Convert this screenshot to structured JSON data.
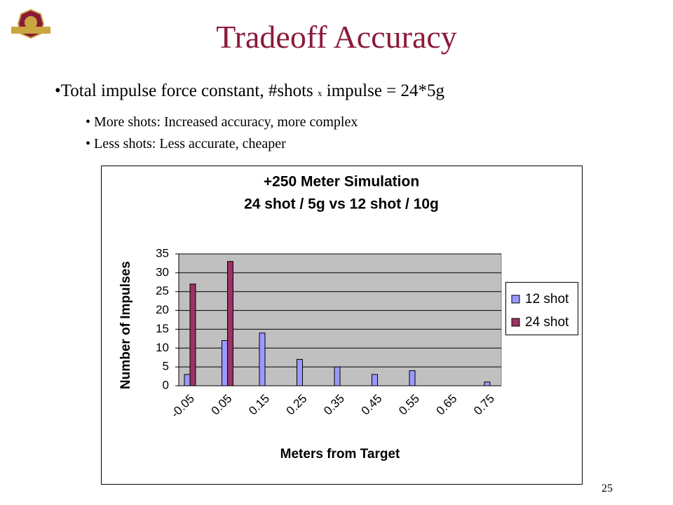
{
  "title": "Tradeoff Accuracy",
  "bullets": [
    {
      "text": [
        "Total impulse force constant, #shots",
        "x",
        "impulse = 24*5g"
      ],
      "subbullets": [
        "More shots: Increased accuracy, more complex",
        "Less shots: Less accurate, cheaper"
      ]
    }
  ],
  "page_number": "25",
  "chart_data": {
    "type": "bar",
    "title": [
      "+250 Meter Simulation",
      "24 shot / 5g vs 12 shot / 10g"
    ],
    "x_label": "Meters from Target",
    "y_label": "Number of Impulses",
    "categories": [
      "-0.05",
      "0.05",
      "0.15",
      "0.25",
      "0.35",
      "0.45",
      "0.55",
      "0.65",
      "0.75"
    ],
    "series": [
      {
        "name": "12 shot",
        "color": "#9999ff",
        "values": [
          3,
          12,
          14,
          7,
          5,
          3,
          4,
          0,
          1
        ]
      },
      {
        "name": "24 shot",
        "color": "#993366",
        "values": [
          27,
          33,
          0,
          0,
          0,
          0,
          0,
          0,
          0
        ]
      }
    ],
    "ylim": [
      0,
      35
    ],
    "yticks": [
      0,
      5,
      10,
      15,
      20,
      25,
      30,
      35
    ],
    "grid": true,
    "legend": "right"
  }
}
